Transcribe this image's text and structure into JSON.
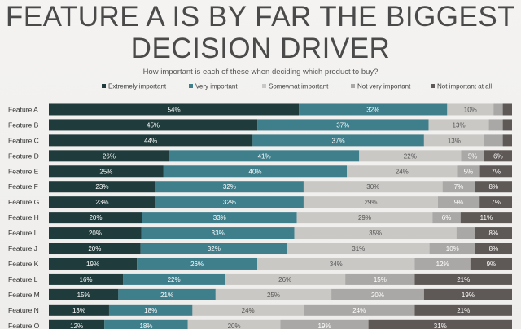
{
  "title_line1": "FEATURE A IS BY FAR THE BIGGEST",
  "title_line2": "DECISION DRIVER",
  "subtitle": "How important is each of these when deciding which product to buy?",
  "chart_data": {
    "type": "bar",
    "orientation": "horizontal",
    "stacked": true,
    "title": "FEATURE A IS BY FAR THE BIGGEST DECISION DRIVER",
    "subtitle": "How important is each of these when deciding which product to buy?",
    "xlabel": "",
    "ylabel": "",
    "xlim": [
      0,
      100
    ],
    "unit": "%",
    "legend_position": "top",
    "categories": [
      "Feature A",
      "Feature B",
      "Feature C",
      "Feature D",
      "Feature E",
      "Feature F",
      "Feature G",
      "Feature H",
      "Feature I",
      "Feature J",
      "Feature K",
      "Feature L",
      "Feature M",
      "Feature N",
      "Feature O"
    ],
    "series": [
      {
        "name": "Extremely important",
        "color": "#1f3b3b",
        "label_color": "#ffffff",
        "values": [
          54,
          45,
          44,
          26,
          25,
          23,
          23,
          20,
          20,
          20,
          19,
          16,
          15,
          13,
          12
        ]
      },
      {
        "name": "Very important",
        "color": "#3f7f8c",
        "label_color": "#ffffff",
        "values": [
          32,
          37,
          37,
          41,
          40,
          32,
          32,
          33,
          33,
          32,
          26,
          22,
          21,
          18,
          18
        ]
      },
      {
        "name": "Somewhat important",
        "color": "#c9c8c5",
        "label_color": "#555555",
        "values": [
          10,
          13,
          13,
          22,
          24,
          30,
          29,
          29,
          35,
          31,
          34,
          26,
          25,
          24,
          20
        ]
      },
      {
        "name": "Not very important",
        "color": "#a9a8a6",
        "label_color": "#ffffff",
        "values": [
          null,
          null,
          null,
          5,
          5,
          7,
          9,
          6,
          null,
          10,
          12,
          15,
          20,
          24,
          19
        ]
      },
      {
        "name": "Not important at all",
        "color": "#5e5856",
        "label_color": "#ffffff",
        "values": [
          null,
          null,
          null,
          6,
          7,
          8,
          7,
          11,
          8,
          8,
          9,
          21,
          19,
          21,
          31
        ]
      }
    ],
    "segment_shares": {
      "Feature A": [
        54,
        32,
        10,
        2,
        2
      ],
      "Feature B": [
        45,
        37,
        13,
        3,
        2
      ],
      "Feature C": [
        44,
        37,
        13,
        4,
        2
      ],
      "Feature I": [
        20,
        33,
        35,
        4,
        8
      ]
    }
  }
}
